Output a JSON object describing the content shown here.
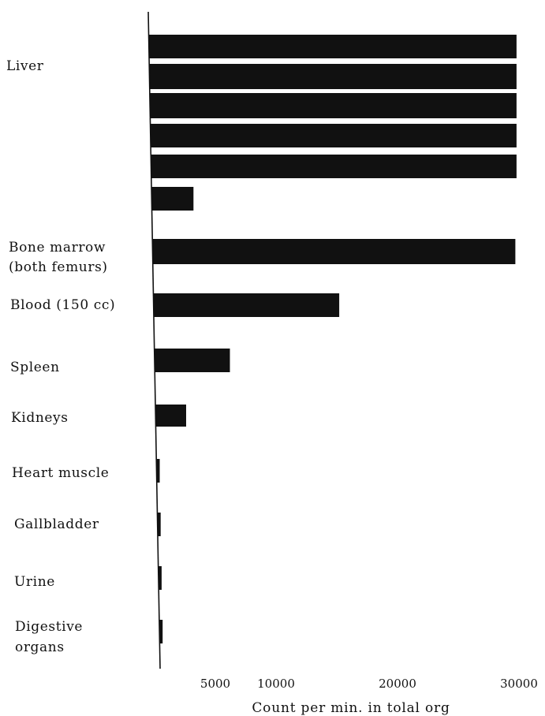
{
  "chart_data": {
    "type": "bar",
    "orientation": "horizontal",
    "title": "",
    "xlabel": "Count per min. in tolal org",
    "ylabel": "",
    "xlim": [
      0,
      30000
    ],
    "xticks": [
      5000,
      10000,
      20000,
      30000
    ],
    "xtick_labels": [
      "5000",
      "10000",
      "20000",
      "30000"
    ],
    "grid": false,
    "legend": "none",
    "bar_color": "#111111",
    "categories": [
      {
        "label": [
          "Liver"
        ],
        "values": [
          29800,
          29800,
          29800,
          29800,
          29800,
          3200
        ]
      },
      {
        "label": [
          "Bone marrow",
          "(both femurs)"
        ],
        "values": [
          29700
        ]
      },
      {
        "label": [
          "Blood (150 cc)"
        ],
        "values": [
          15200
        ]
      },
      {
        "label": [
          "Spleen"
        ],
        "values": [
          6200
        ]
      },
      {
        "label": [
          "Kidneys"
        ],
        "values": [
          2600
        ]
      },
      {
        "label": [
          "Heart muscle"
        ],
        "values": [
          300
        ]
      },
      {
        "label": [
          "Gallbladder"
        ],
        "values": [
          200
        ]
      },
      {
        "label": [
          "Urine"
        ],
        "values": [
          500
        ]
      },
      {
        "label": [
          "Digestive",
          "organs"
        ],
        "values": [
          200
        ]
      }
    ]
  }
}
